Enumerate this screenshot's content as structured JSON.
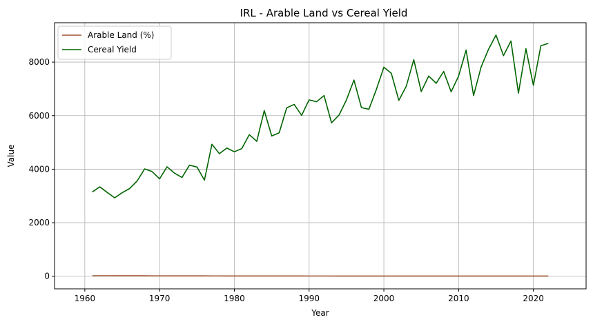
{
  "chart_data": {
    "type": "line",
    "title": "IRL - Arable Land vs Cereal Yield",
    "xlabel": "Year",
    "ylabel": "Value",
    "xlim": [
      1955.95,
      2027.05
    ],
    "ylim": [
      -470,
      9470
    ],
    "xticks": [
      1960,
      1970,
      1980,
      1990,
      2000,
      2010,
      2020
    ],
    "yticks": [
      0,
      2000,
      4000,
      6000,
      8000
    ],
    "grid": true,
    "legend_position": "top-left",
    "x": [
      1961,
      1962,
      1963,
      1964,
      1965,
      1966,
      1967,
      1968,
      1969,
      1970,
      1971,
      1972,
      1973,
      1974,
      1975,
      1976,
      1977,
      1978,
      1979,
      1980,
      1981,
      1982,
      1983,
      1984,
      1985,
      1986,
      1987,
      1988,
      1989,
      1990,
      1991,
      1992,
      1993,
      1994,
      1995,
      1996,
      1997,
      1998,
      1999,
      2000,
      2001,
      2002,
      2003,
      2004,
      2005,
      2006,
      2007,
      2008,
      2009,
      2010,
      2011,
      2012,
      2013,
      2014,
      2015,
      2016,
      2017,
      2018,
      2019,
      2020,
      2021,
      2022
    ],
    "series": [
      {
        "name": "Arable Land (%)",
        "color": "#a0522d",
        "values": [
          19.5,
          19.3,
          19.0,
          18.5,
          18.0,
          17.5,
          17.0,
          16.6,
          16.2,
          15.8,
          15.4,
          15.0,
          14.6,
          14.2,
          13.8,
          13.4,
          13.0,
          12.6,
          12.3,
          12.0,
          11.7,
          11.4,
          11.1,
          10.9,
          10.7,
          10.5,
          10.3,
          10.1,
          9.9,
          9.8,
          9.6,
          9.5,
          9.4,
          9.3,
          9.2,
          9.1,
          9.0,
          9.0,
          9.0,
          9.0,
          9.0,
          9.0,
          9.0,
          9.0,
          9.0,
          9.0,
          9.0,
          9.0,
          9.0,
          9.0,
          9.0,
          9.0,
          9.0,
          9.0,
          9.0,
          9.0,
          9.0,
          9.0,
          9.0,
          9.0,
          9.0,
          9.0
        ]
      },
      {
        "name": "Cereal Yield",
        "color": "#006400",
        "values": [
          3150,
          3340,
          3130,
          2930,
          3120,
          3280,
          3560,
          4010,
          3910,
          3640,
          4090,
          3850,
          3690,
          4150,
          4080,
          3590,
          4930,
          4580,
          4790,
          4650,
          4770,
          5290,
          5040,
          6190,
          5240,
          5360,
          6290,
          6420,
          6010,
          6590,
          6520,
          6750,
          5730,
          6020,
          6590,
          7330,
          6300,
          6240,
          6980,
          7810,
          7580,
          6570,
          7100,
          8090,
          6900,
          7480,
          7210,
          7650,
          6890,
          7480,
          8450,
          6750,
          7810,
          8480,
          9010,
          8240,
          8790,
          6840,
          8500,
          7130,
          8610,
          8700
        ]
      }
    ]
  }
}
